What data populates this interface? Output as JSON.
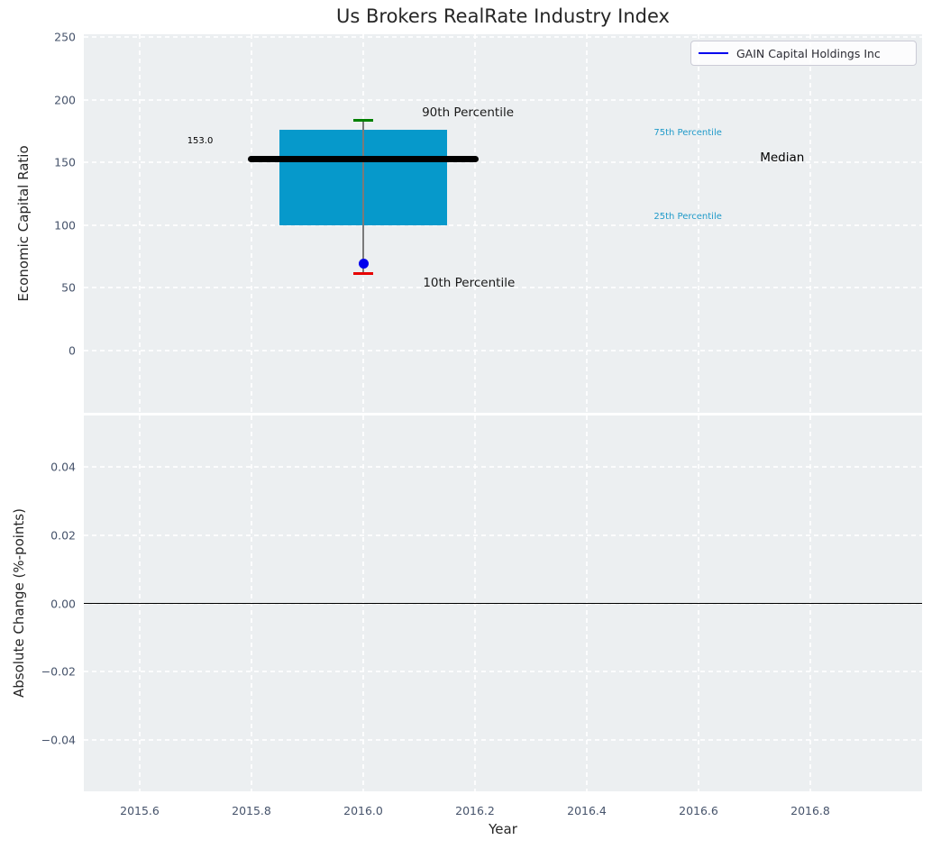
{
  "figure": {
    "title": "Us Brokers RealRate Industry Index",
    "background_color": "#ffffff",
    "axes_background_color": "#eceff1",
    "grid_color": "#ffffff",
    "tick_label_color": "#46536b",
    "text_color": "#262626"
  },
  "chart_data": [
    {
      "type": "boxplot",
      "title": "Us Brokers RealRate Industry Index",
      "xlabel": "",
      "ylabel": "Economic Capital Ratio",
      "xlim": [
        2015.5,
        2017.0
      ],
      "ylim": [
        -50,
        252.5
      ],
      "grid": true,
      "x_tick_labels_visible": false,
      "yticks": {
        "values": [
          0,
          50,
          100,
          150,
          200,
          250
        ],
        "labels": [
          "0",
          "50",
          "100",
          "150",
          "200",
          "250"
        ]
      },
      "xticks": {
        "values": [
          2015.6,
          2015.8,
          2016.0,
          2016.2,
          2016.4,
          2016.6,
          2016.8
        ],
        "labels": [
          "2015.6",
          "2015.8",
          "2016.0",
          "2016.2",
          "2016.4",
          "2016.6",
          "2016.8"
        ]
      },
      "legend": {
        "location": "upper right",
        "entries": [
          {
            "label": "GAIN Capital Holdings Inc",
            "color": "#0000ee"
          }
        ]
      },
      "box": {
        "x": 2016.0,
        "p10": 61,
        "p25": 100,
        "median": 153,
        "p75": 176,
        "p90": 184,
        "company_value": 69,
        "box_halfwidth": 0.15,
        "median_halfwidth": 0.2,
        "cap_halfwidth": 0.017,
        "box_color": "#0699cb",
        "median_color": "#000000",
        "whisker_color": "#7a7a7a",
        "p90_cap_color": "#008000",
        "p10_cap_color": "#e60000",
        "company_dot_color": "#0000ee"
      },
      "annotations": [
        {
          "text": "153.0",
          "x": 2015.685,
          "y": 167,
          "color": "#000000",
          "font_px": 10
        },
        {
          "text": "90th Percentile",
          "x": 2016.105,
          "y": 190,
          "color": "#1a1a1a",
          "font_px": 13.5
        },
        {
          "text": "10th Percentile",
          "x": 2016.107,
          "y": 54,
          "color": "#1a1a1a",
          "font_px": 13.5
        },
        {
          "text": "75th Percentile",
          "x": 2016.52,
          "y": 173,
          "color": "#1f9ac9",
          "font_px": 10
        },
        {
          "text": "25th Percentile",
          "x": 2016.52,
          "y": 106,
          "color": "#1f9ac9",
          "font_px": 10
        },
        {
          "text": "Median",
          "x": 2016.71,
          "y": 154,
          "color": "#000000",
          "font_px": 13.5
        }
      ]
    },
    {
      "type": "line",
      "title": "",
      "xlabel": "Year",
      "ylabel": "Absolute Change (%-points)",
      "xlim": [
        2015.5,
        2017.0
      ],
      "ylim": [
        -0.055,
        0.055
      ],
      "grid": true,
      "x_tick_labels_visible": true,
      "yticks": {
        "values": [
          0.04,
          0.02,
          0,
          -0.02,
          -0.04
        ],
        "labels": [
          "0.04",
          "0.02",
          "0.00",
          "−0.02",
          "−0.04"
        ]
      },
      "xticks": {
        "values": [
          2015.6,
          2015.8,
          2016.0,
          2016.2,
          2016.4,
          2016.6,
          2016.8
        ],
        "labels": [
          "2015.6",
          "2015.8",
          "2016.0",
          "2016.2",
          "2016.4",
          "2016.6",
          "2016.8"
        ]
      },
      "zero_line": {
        "y": 0.0,
        "color": "#000000"
      },
      "series": []
    }
  ]
}
